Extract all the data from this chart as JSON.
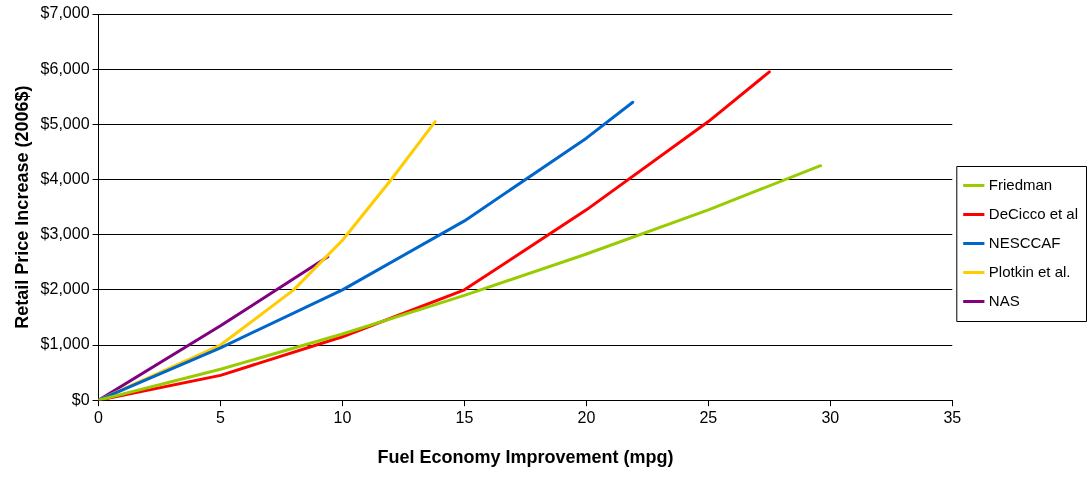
{
  "chart_data": {
    "type": "line",
    "xlabel": "Fuel Economy Improvement (mpg)",
    "ylabel": "Retail Price Increase (2006$)",
    "xlim": [
      0,
      35
    ],
    "xticks": [
      0,
      5,
      10,
      15,
      20,
      25,
      30,
      35
    ],
    "ylim": [
      0,
      7000
    ],
    "yticks": [
      {
        "value": 0,
        "label": "$0"
      },
      {
        "value": 1000,
        "label": "$1,000"
      },
      {
        "value": 2000,
        "label": "$2,000"
      },
      {
        "value": 3000,
        "label": "$3,000"
      },
      {
        "value": 4000,
        "label": "$4,000"
      },
      {
        "value": 5000,
        "label": "$5,000"
      },
      {
        "value": 6000,
        "label": "$6,000"
      },
      {
        "value": 7000,
        "label": "$7,000"
      }
    ],
    "grid": "y",
    "legend": "right",
    "marker": "none",
    "line_style": "solid",
    "series": [
      {
        "name": "Friedman",
        "color": "#99cc00",
        "x": [
          0,
          5,
          10,
          15,
          20,
          25,
          29.6
        ],
        "values": [
          0,
          560,
          1200,
          1900,
          2650,
          3450,
          4250
        ]
      },
      {
        "name": "DeCicco et al",
        "color": "#ff0000",
        "x": [
          0,
          5,
          10,
          15,
          20,
          25,
          27.5
        ],
        "values": [
          0,
          450,
          1150,
          2000,
          3450,
          5050,
          5950
        ]
      },
      {
        "name": "NESCCAF",
        "color": "#0066cc",
        "x": [
          0,
          5,
          10,
          15,
          20,
          21.9
        ],
        "values": [
          0,
          950,
          2000,
          3250,
          4750,
          5400
        ]
      },
      {
        "name": "Plotkin et al.",
        "color": "#ffcc00",
        "x": [
          0,
          5,
          8,
          10,
          12,
          13.8
        ],
        "values": [
          0,
          1000,
          2000,
          2900,
          4000,
          5050
        ]
      },
      {
        "name": "NAS",
        "color": "#800080",
        "x": [
          0,
          5,
          9.4
        ],
        "values": [
          0,
          1350,
          2600
        ]
      }
    ]
  }
}
